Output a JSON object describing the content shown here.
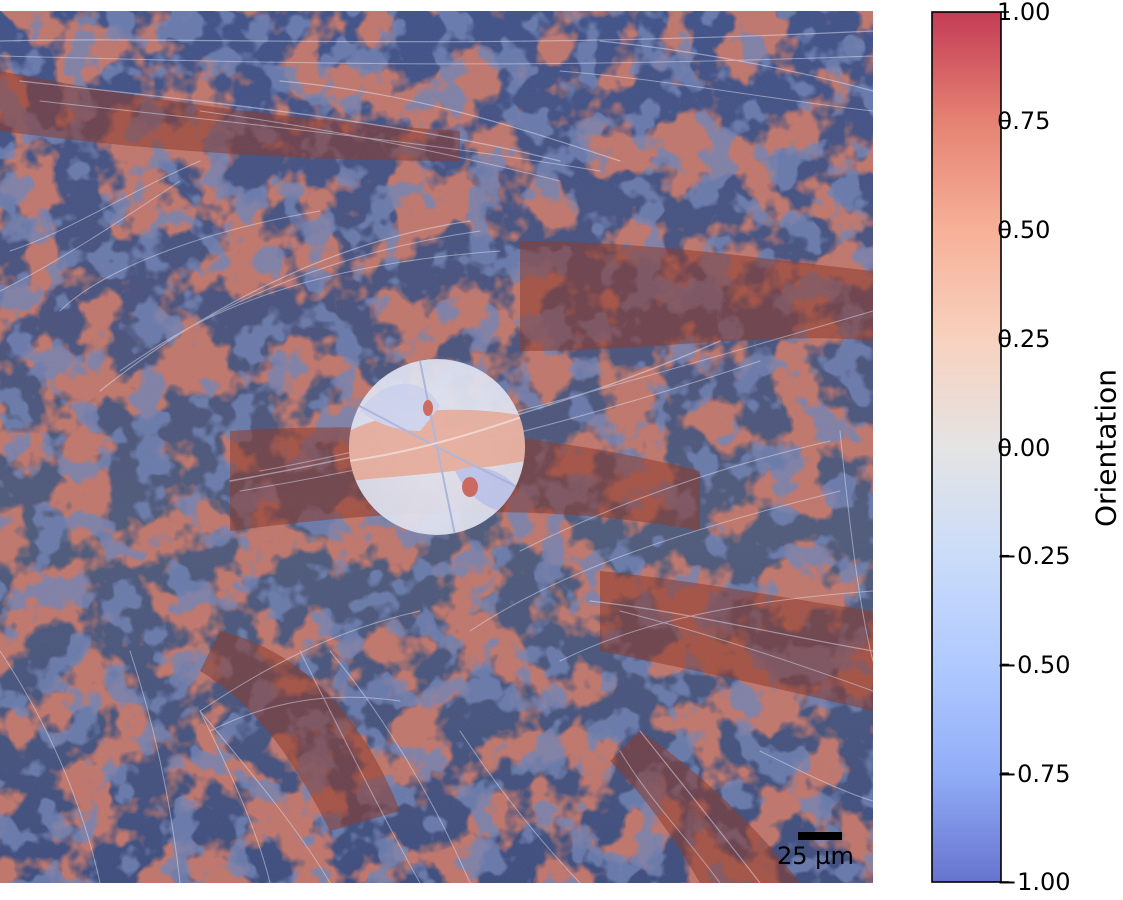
{
  "figure": {
    "colorbar": {
      "label": "Orientation",
      "colormap": "coolwarm",
      "range": [
        -1.0,
        1.0
      ],
      "ticks": [
        "1.00",
        "0.75",
        "0.50",
        "0.25",
        "0.00",
        "−0.25",
        "−0.50",
        "−0.75",
        "−1.00"
      ],
      "tick_values": [
        1.0,
        0.75,
        0.5,
        0.25,
        0.0,
        -0.25,
        -0.5,
        -0.75,
        -1.0
      ],
      "colors": {
        "max": "#b40426",
        "mid": "#dddcdc",
        "min": "#3b4cc0"
      }
    },
    "scale_bar": {
      "label": "25 µm"
    },
    "overlay_colors": {
      "blue": "#3e4f86",
      "red": "#8a2a1e",
      "tan": "#9a6a4a",
      "fiber": "#e8ecff"
    }
  }
}
